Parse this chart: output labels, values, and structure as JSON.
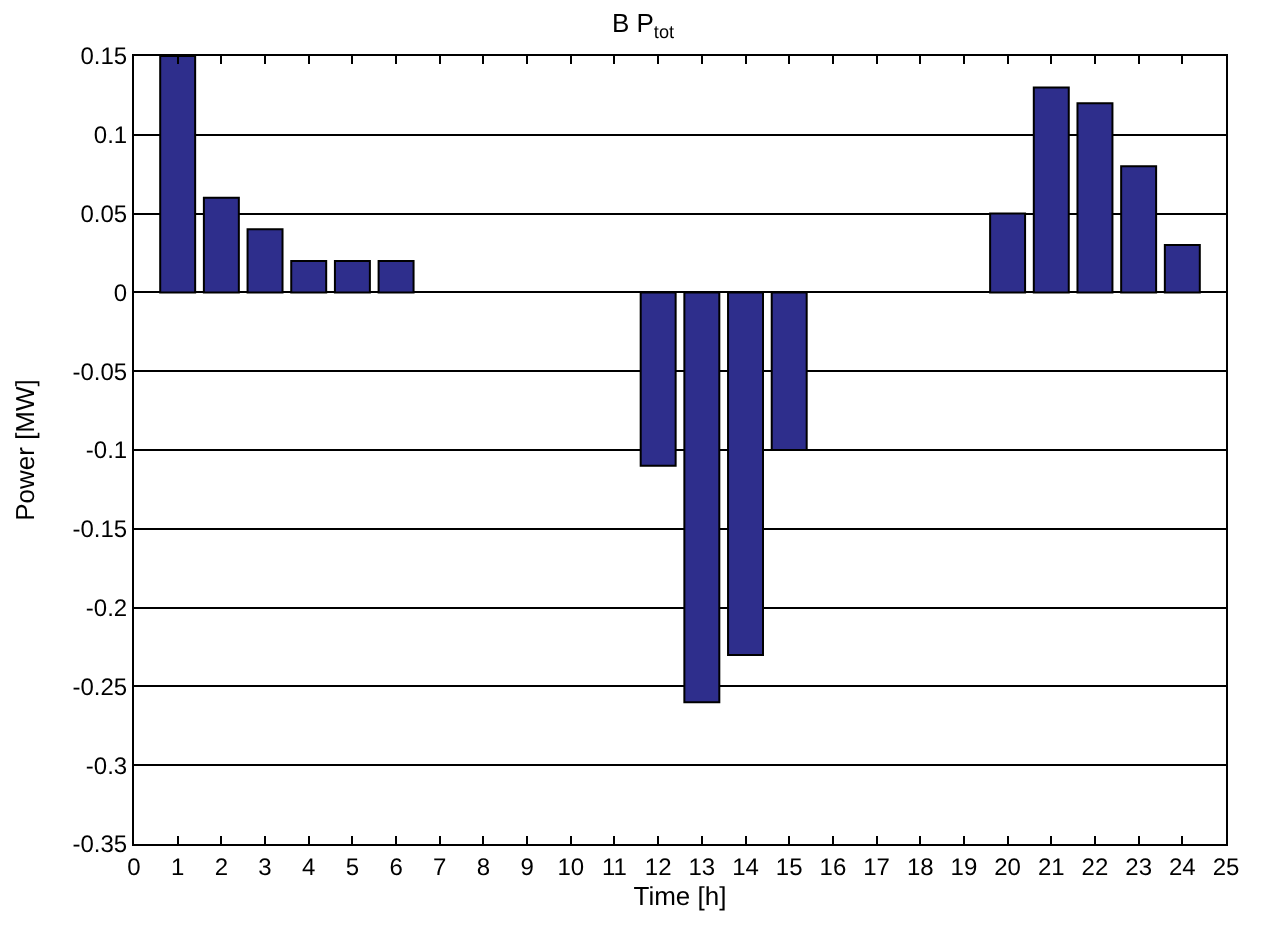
{
  "chart_data": {
    "type": "bar",
    "title": "B P$_{tot}$",
    "xlabel": "Time [h]",
    "ylabel": "Power [MW]",
    "x": [
      1,
      2,
      3,
      4,
      5,
      6,
      7,
      8,
      9,
      10,
      11,
      12,
      13,
      14,
      15,
      16,
      17,
      18,
      19,
      20,
      21,
      22,
      23,
      24
    ],
    "values": [
      0.15,
      0.06,
      0.04,
      0.02,
      0.02,
      0.02,
      null,
      null,
      null,
      null,
      null,
      -0.11,
      -0.26,
      -0.23,
      -0.1,
      null,
      null,
      null,
      null,
      0.05,
      0.13,
      0.12,
      0.08,
      0.03
    ],
    "color": "#2e2e8c",
    "xlim": [
      0,
      25
    ],
    "xticks": [
      0,
      1,
      2,
      3,
      4,
      5,
      6,
      7,
      8,
      9,
      10,
      11,
      12,
      13,
      14,
      15,
      16,
      17,
      18,
      19,
      20,
      21,
      22,
      23,
      24,
      25
    ],
    "ylim": [
      -0.35,
      0.15
    ],
    "yticks": [
      -0.35,
      -0.3,
      -0.25,
      -0.2,
      -0.15,
      -0.1,
      -0.05,
      0,
      0.05,
      0.1,
      0.15
    ],
    "grid": "y"
  }
}
